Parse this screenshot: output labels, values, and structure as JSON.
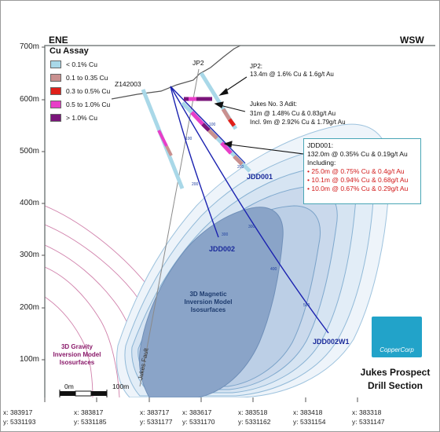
{
  "header": {
    "left": "ENE",
    "right": "WSW"
  },
  "elevations": [
    "700m",
    "600m",
    "500m",
    "400m",
    "300m",
    "200m",
    "100m"
  ],
  "legend": {
    "title": "Cu Assay",
    "items": [
      {
        "label": "< 0.1% Cu",
        "color": "#a9d8e8"
      },
      {
        "label": "0.1 to 0.35 Cu",
        "color": "#c9908f"
      },
      {
        "label": "0.3 to 0.5% Cu",
        "color": "#e0201a"
      },
      {
        "label": "0.5 to 1.0% Cu",
        "color": "#e83ec8"
      },
      {
        "label": "> 1.0% Cu",
        "color": "#7a157a"
      }
    ]
  },
  "holes": {
    "z142003": "Z142003",
    "jp2": "JP2",
    "jdd001": "JDD001",
    "jdd002": "JDD002",
    "jdd002w1": "JDD002W1"
  },
  "depth_ticks": [
    "100",
    "100",
    "200",
    "200",
    "300",
    "300",
    "400",
    "500"
  ],
  "annotations": {
    "jp2_title": "JP2:",
    "jp2_result": "13.4m @ 1.6% Cu & 1.6g/t Au",
    "adit_title": "Jukes No. 3 Adit:",
    "adit_result": "31m @ 1.48% Cu & 0.83g/t Au",
    "adit_incl": "Incl. 9m @ 2.92% Cu & 1.79g/t Au"
  },
  "jdd001_box": {
    "title": "JDD001:",
    "main": "132.0m @ 0.35% Cu & 0.19g/t Au",
    "including": "Including:",
    "items": [
      "25.0m @ 0.75% Cu & 0.4g/t Au",
      "10.1m @ 0.94% Cu & 0.68g/t Au",
      "10.0m @ 0.67% Cu & 0.29g/t Au"
    ]
  },
  "model_magnetic": [
    "3D Magnetic",
    "Inversion Model",
    "Isosurfaces"
  ],
  "model_gravity": [
    "3D Gravity",
    "Inversion Model",
    "Isosurfaces"
  ],
  "fault_label": "Jukes Fault",
  "scale_bar": {
    "start": "0m",
    "end": "100m"
  },
  "logo": {
    "text": "CopperCorp"
  },
  "title": [
    "Jukes Prospect",
    "Drill Section"
  ],
  "coordinates": [
    {
      "x": "x: 383917",
      "y": "y: 5331193"
    },
    {
      "x": "x: 383817",
      "y": "y: 5331185"
    },
    {
      "x": "x: 383717",
      "y": "y: 5331177"
    },
    {
      "x": "x: 383617",
      "y": "y: 5331170"
    },
    {
      "x": "x: 383518",
      "y": "y: 5331162"
    },
    {
      "x": "x: 383418",
      "y": "y: 5331154"
    },
    {
      "x": "x: 383318",
      "y": "y: 5331147"
    }
  ],
  "colors": {
    "drill_trace": "#1b22b0",
    "iso_fill_outer": "#e6f0f8",
    "iso_fill_core": "#8aa4c8",
    "gravity_lines": "#c86a9c",
    "frame": "#7a8080",
    "callout_border": "#49a6b6",
    "logo_bg": "#22a3c9"
  }
}
